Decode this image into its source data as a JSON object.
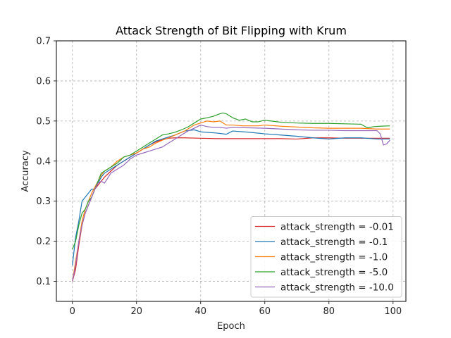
{
  "chart_data": {
    "type": "line",
    "title": "Attack Strength of Bit Flipping with Krum",
    "xlabel": "Epoch",
    "ylabel": "Accuracy",
    "xlim": [
      -5,
      104
    ],
    "ylim": [
      0.05,
      0.7
    ],
    "xticks": [
      0,
      20,
      40,
      60,
      80,
      100
    ],
    "yticks": [
      0.1,
      0.2,
      0.3,
      0.4,
      0.5,
      0.6,
      0.7
    ],
    "grid": true,
    "legend_position": "lower-right",
    "colors": {
      "s_001": "#d62728",
      "s_01": "#1f77b4",
      "s_1": "#ff7f0e",
      "s_5": "#2ca02c",
      "s_10": "#9467bd"
    },
    "series": [
      {
        "name": "attack_strength = -0.01",
        "color_key": "s_001",
        "x": [
          0,
          1,
          2,
          3,
          4,
          5,
          6,
          7,
          8,
          9,
          10,
          12,
          14,
          16,
          18,
          20,
          22,
          24,
          26,
          28,
          30,
          32,
          35,
          40,
          45,
          50,
          55,
          60,
          65,
          70,
          75,
          80,
          85,
          90,
          95,
          99
        ],
        "values": [
          0.1,
          0.13,
          0.19,
          0.24,
          0.27,
          0.29,
          0.31,
          0.33,
          0.34,
          0.35,
          0.36,
          0.375,
          0.39,
          0.4,
          0.41,
          0.42,
          0.43,
          0.44,
          0.448,
          0.453,
          0.457,
          0.458,
          0.458,
          0.457,
          0.456,
          0.456,
          0.456,
          0.456,
          0.456,
          0.455,
          0.458,
          0.458,
          0.457,
          0.457,
          0.457,
          0.457
        ]
      },
      {
        "name": "attack_strength = -0.1",
        "color_key": "s_01",
        "x": [
          0,
          1,
          2,
          3,
          4,
          5,
          6,
          7,
          8,
          9,
          10,
          12,
          14,
          16,
          18,
          20,
          22,
          24,
          26,
          28,
          30,
          32,
          35,
          38,
          40,
          45,
          48,
          50,
          55,
          60,
          65,
          70,
          75,
          80,
          85,
          90,
          95,
          97,
          98,
          99
        ],
        "values": [
          0.14,
          0.21,
          0.25,
          0.3,
          0.31,
          0.32,
          0.33,
          0.33,
          0.345,
          0.36,
          0.37,
          0.38,
          0.39,
          0.4,
          0.41,
          0.42,
          0.43,
          0.44,
          0.45,
          0.455,
          0.46,
          0.465,
          0.475,
          0.478,
          0.473,
          0.47,
          0.467,
          0.475,
          0.472,
          0.468,
          0.465,
          0.462,
          0.458,
          0.455,
          0.458,
          0.458,
          0.455,
          0.455,
          0.455,
          0.455
        ]
      },
      {
        "name": "attack_strength = -1.0",
        "color_key": "s_1",
        "x": [
          0,
          1,
          2,
          3,
          4,
          5,
          6,
          7,
          8,
          9,
          10,
          12,
          14,
          16,
          18,
          20,
          22,
          24,
          26,
          28,
          30,
          32,
          35,
          38,
          40,
          42,
          44,
          46,
          48,
          50,
          53,
          55,
          58,
          60,
          65,
          70,
          75,
          80,
          85,
          90,
          95,
          99
        ],
        "values": [
          0.1,
          0.15,
          0.2,
          0.25,
          0.28,
          0.3,
          0.32,
          0.335,
          0.35,
          0.365,
          0.375,
          0.385,
          0.4,
          0.41,
          0.415,
          0.42,
          0.43,
          0.435,
          0.445,
          0.452,
          0.458,
          0.465,
          0.475,
          0.49,
          0.495,
          0.5,
          0.498,
          0.5,
          0.49,
          0.49,
          0.488,
          0.488,
          0.488,
          0.49,
          0.487,
          0.485,
          0.483,
          0.482,
          0.482,
          0.482,
          0.48,
          0.48
        ]
      },
      {
        "name": "attack_strength = -5.0",
        "color_key": "s_5",
        "x": [
          0,
          1,
          2,
          3,
          4,
          5,
          6,
          7,
          8,
          9,
          10,
          12,
          14,
          16,
          18,
          20,
          22,
          24,
          26,
          28,
          30,
          32,
          34,
          36,
          38,
          40,
          42,
          44,
          46,
          47,
          48,
          50,
          52,
          54,
          56,
          58,
          60,
          62,
          65,
          70,
          75,
          80,
          85,
          90,
          92,
          94,
          96,
          99
        ],
        "values": [
          0.18,
          0.2,
          0.24,
          0.27,
          0.28,
          0.3,
          0.31,
          0.33,
          0.35,
          0.37,
          0.375,
          0.385,
          0.395,
          0.41,
          0.415,
          0.425,
          0.435,
          0.445,
          0.455,
          0.465,
          0.468,
          0.472,
          0.478,
          0.485,
          0.495,
          0.505,
          0.508,
          0.512,
          0.518,
          0.52,
          0.518,
          0.508,
          0.502,
          0.505,
          0.498,
          0.498,
          0.502,
          0.5,
          0.497,
          0.495,
          0.494,
          0.494,
          0.493,
          0.492,
          0.483,
          0.486,
          0.487,
          0.488
        ]
      },
      {
        "name": "attack_strength = -10.0",
        "color_key": "s_10",
        "x": [
          0,
          1,
          2,
          3,
          4,
          5,
          6,
          7,
          8,
          9,
          10,
          12,
          14,
          16,
          18,
          20,
          22,
          24,
          26,
          28,
          30,
          32,
          34,
          36,
          38,
          40,
          42,
          44,
          46,
          48,
          50,
          55,
          60,
          65,
          70,
          75,
          80,
          85,
          90,
          95,
          96,
          97,
          98,
          99
        ],
        "values": [
          0.1,
          0.14,
          0.2,
          0.24,
          0.27,
          0.29,
          0.31,
          0.33,
          0.345,
          0.35,
          0.345,
          0.37,
          0.38,
          0.39,
          0.405,
          0.415,
          0.42,
          0.425,
          0.43,
          0.435,
          0.445,
          0.455,
          0.465,
          0.475,
          0.482,
          0.49,
          0.486,
          0.484,
          0.484,
          0.482,
          0.484,
          0.483,
          0.482,
          0.48,
          0.478,
          0.477,
          0.477,
          0.476,
          0.476,
          0.476,
          0.468,
          0.44,
          0.443,
          0.452
        ]
      }
    ]
  }
}
